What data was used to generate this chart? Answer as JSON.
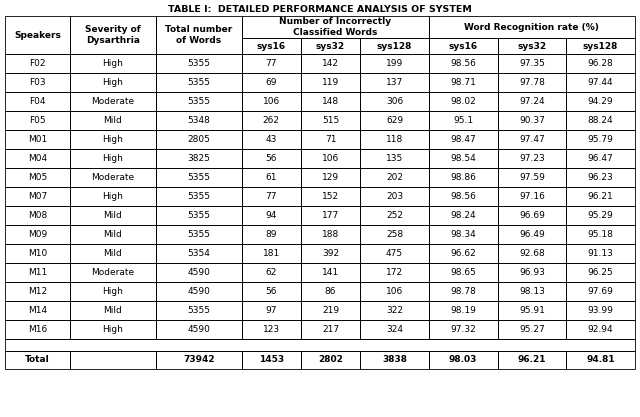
{
  "title": "TABLE I:  DETAILED PERFORMANCE ANALYSIS OF SYSTEM",
  "col_headers_merged": [
    "Speakers",
    "Severity of\nDysarthria",
    "Total number\nof Words",
    "sys16",
    "sys32",
    "sys128",
    "sys16",
    "sys32",
    "sys128"
  ],
  "span_label_1": "Number of Incorrectly\nClassified Words",
  "span_label_2": "Word Recognition rate (%)",
  "rows": [
    [
      "F02",
      "High",
      "5355",
      "77",
      "142",
      "199",
      "98.56",
      "97.35",
      "96.28"
    ],
    [
      "F03",
      "High",
      "5355",
      "69",
      "119",
      "137",
      "98.71",
      "97.78",
      "97.44"
    ],
    [
      "F04",
      "Moderate",
      "5355",
      "106",
      "148",
      "306",
      "98.02",
      "97.24",
      "94.29"
    ],
    [
      "F05",
      "Mild",
      "5348",
      "262",
      "515",
      "629",
      "95.1",
      "90.37",
      "88.24"
    ],
    [
      "M01",
      "High",
      "2805",
      "43",
      "71",
      "118",
      "98.47",
      "97.47",
      "95.79"
    ],
    [
      "M04",
      "High",
      "3825",
      "56",
      "106",
      "135",
      "98.54",
      "97.23",
      "96.47"
    ],
    [
      "M05",
      "Moderate",
      "5355",
      "61",
      "129",
      "202",
      "98.86",
      "97.59",
      "96.23"
    ],
    [
      "M07",
      "High",
      "5355",
      "77",
      "152",
      "203",
      "98.56",
      "97.16",
      "96.21"
    ],
    [
      "M08",
      "Mild",
      "5355",
      "94",
      "177",
      "252",
      "98.24",
      "96.69",
      "95.29"
    ],
    [
      "M09",
      "Mild",
      "5355",
      "89",
      "188",
      "258",
      "98.34",
      "96.49",
      "95.18"
    ],
    [
      "M10",
      "Mild",
      "5354",
      "181",
      "392",
      "475",
      "96.62",
      "92.68",
      "91.13"
    ],
    [
      "M11",
      "Moderate",
      "4590",
      "62",
      "141",
      "172",
      "98.65",
      "96.93",
      "96.25"
    ],
    [
      "M12",
      "High",
      "4590",
      "56",
      "86",
      "106",
      "98.78",
      "98.13",
      "97.69"
    ],
    [
      "M14",
      "Mild",
      "5355",
      "97",
      "219",
      "322",
      "98.19",
      "95.91",
      "93.99"
    ],
    [
      "M16",
      "High",
      "4590",
      "123",
      "217",
      "324",
      "97.32",
      "95.27",
      "92.94"
    ]
  ],
  "total_row": [
    "Total",
    "",
    "73942",
    "1453",
    "2802",
    "3838",
    "98.03",
    "96.21",
    "94.81"
  ],
  "bg_color": "#ffffff",
  "text_color": "#000000",
  "col_widths_raw": [
    68,
    90,
    90,
    62,
    62,
    72,
    72,
    72,
    72
  ],
  "title_fontsize": 6.8,
  "header_fontsize": 6.5,
  "data_fontsize": 6.5,
  "lw": 0.6
}
